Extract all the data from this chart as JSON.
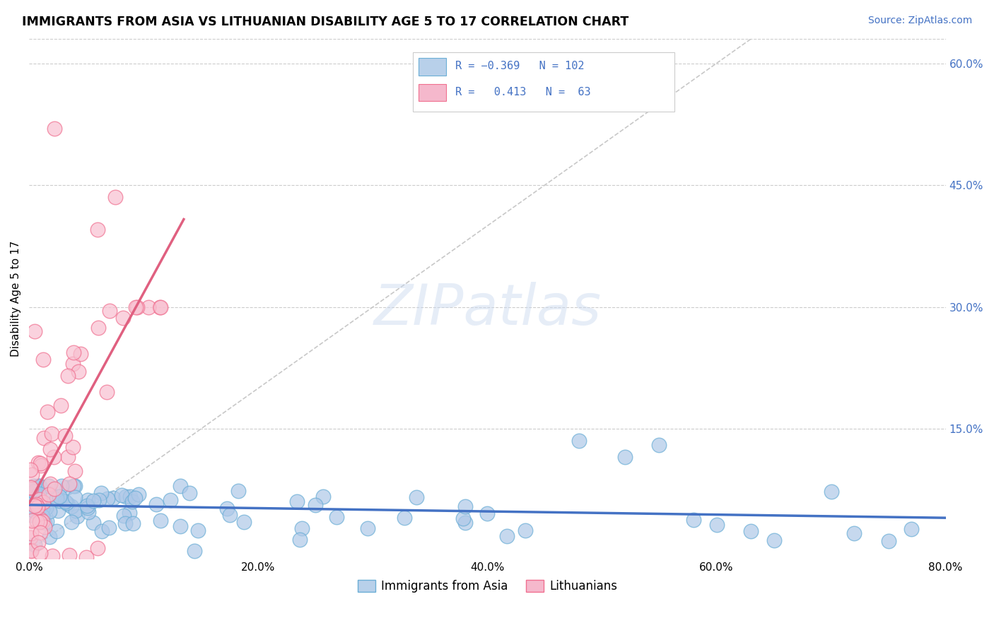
{
  "title": "IMMIGRANTS FROM ASIA VS LITHUANIAN DISABILITY AGE 5 TO 17 CORRELATION CHART",
  "source": "Source: ZipAtlas.com",
  "ylabel": "Disability Age 5 to 17",
  "xlim": [
    0.0,
    0.8
  ],
  "ylim": [
    -0.01,
    0.63
  ],
  "xticks": [
    0.0,
    0.2,
    0.4,
    0.6,
    0.8
  ],
  "xtick_labels": [
    "0.0%",
    "20.0%",
    "40.0%",
    "60.0%",
    "80.0%"
  ],
  "ytick_right_labels": [
    "60.0%",
    "45.0%",
    "30.0%",
    "15.0%"
  ],
  "ytick_right_vals": [
    0.6,
    0.45,
    0.3,
    0.15
  ],
  "r_asia": -0.369,
  "n_asia": 102,
  "r_lith": 0.413,
  "n_lith": 63,
  "blue_edge": "#6baed6",
  "blue_fill": "#aec8e8",
  "pink_edge": "#f07090",
  "pink_fill": "#f8c0d0",
  "legend_blue_fill": "#b8d0ea",
  "legend_pink_fill": "#f5b8cc",
  "text_blue": "#4472c4",
  "grid_color": "#cccccc",
  "background": "#ffffff",
  "diag_color": "#c0c0c0",
  "seed": 99
}
